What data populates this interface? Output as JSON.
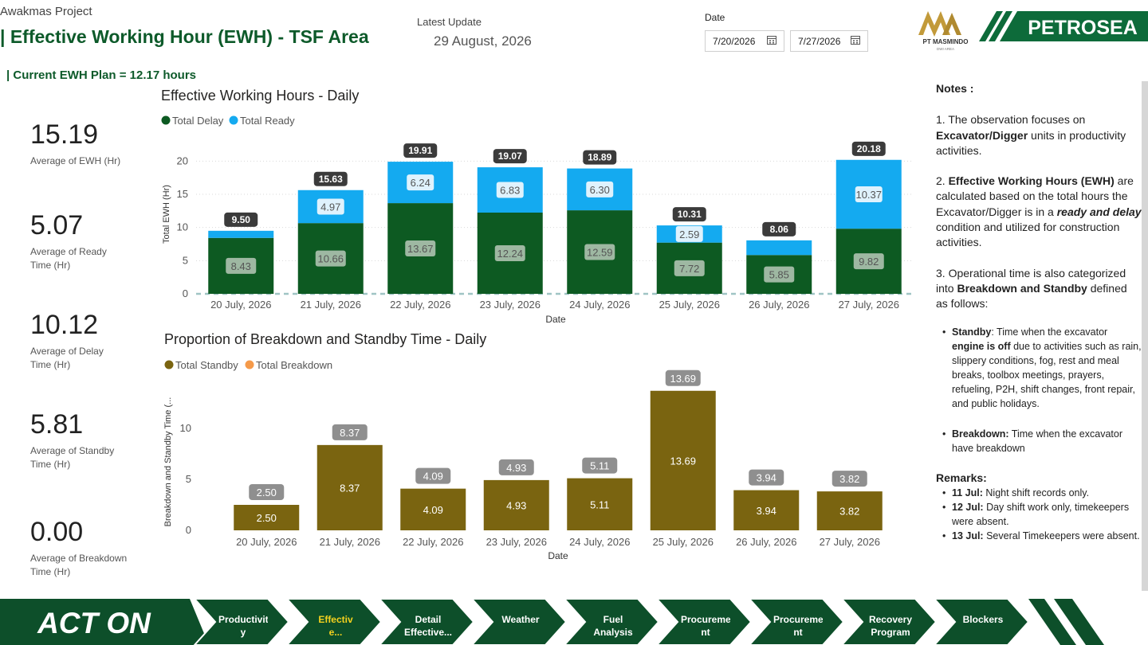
{
  "header": {
    "project": "Awakmas Project",
    "title": "| Effective Working Hour (EWH) - TSF Area",
    "plan": "| Current EWH Plan = 12.17 hours",
    "latest_update_label": "Latest Update",
    "latest_update_value": "29 August, 2026",
    "date_label": "Date",
    "date_start": "7/20/2026",
    "date_end": "7/27/2026"
  },
  "logos": {
    "masmindo_text": "PT MASMINDO",
    "masmindo_sub": "DWI AREA",
    "petrosea_text": "PETROSEA"
  },
  "kpis": [
    {
      "value": "15.19",
      "label": "Average of EWH (Hr)"
    },
    {
      "value": "5.07",
      "label": "Average of Ready Time (Hr)"
    },
    {
      "value": "10.12",
      "label": "Average of Delay Time (Hr)"
    },
    {
      "value": "5.81",
      "label": "Average of Standby Time (Hr)"
    },
    {
      "value": "0.00",
      "label": "Average of Breakdown Time (Hr)"
    }
  ],
  "colors": {
    "delay": "#0d5a22",
    "ready": "#14aaf0",
    "standby": "#7a6410",
    "breakdown": "#f59a4a",
    "brand_green": "#0d5a2a"
  },
  "chart_data": [
    {
      "type": "bar",
      "stacked": true,
      "title": "Effective Working Hours - Daily",
      "xlabel": "Date",
      "ylabel": "Total EWH (Hr)",
      "ylim": [
        0,
        21
      ],
      "yticks": [
        0,
        5,
        10,
        15,
        20
      ],
      "grid": true,
      "legend": "top-left",
      "categories": [
        "20 July, 2026",
        "21 July, 2026",
        "22 July, 2026",
        "23 July, 2026",
        "24 July, 2026",
        "25 July, 2026",
        "26 July, 2026",
        "27 July, 2026"
      ],
      "series": [
        {
          "name": "Total Delay",
          "values": [
            8.43,
            10.66,
            13.67,
            12.24,
            12.59,
            7.72,
            5.85,
            9.82
          ]
        },
        {
          "name": "Total Ready",
          "values": [
            1.07,
            4.97,
            6.24,
            6.83,
            6.3,
            2.59,
            2.21,
            10.37
          ]
        }
      ],
      "totals": [
        9.5,
        15.63,
        19.91,
        19.07,
        18.89,
        10.31,
        8.06,
        20.18
      ],
      "ready_labels_shown": [
        false,
        true,
        true,
        true,
        true,
        true,
        false,
        true
      ]
    },
    {
      "type": "bar",
      "title": "Proportion of Breakdown and Standby Time - Daily",
      "xlabel": "Date",
      "ylabel": "Breakdown and Standby Time (...",
      "ylim": [
        0,
        15
      ],
      "yticks": [
        0,
        5,
        10
      ],
      "grid": false,
      "legend": "top-left",
      "categories": [
        "20 July, 2026",
        "21 July, 2026",
        "22 July, 2026",
        "23 July, 2026",
        "24 July, 2026",
        "25 July, 2026",
        "26 July, 2026",
        "27 July, 2026"
      ],
      "series": [
        {
          "name": "Total Standby",
          "values": [
            2.5,
            8.37,
            4.09,
            4.93,
            5.11,
            13.69,
            3.94,
            3.82
          ]
        },
        {
          "name": "Total Breakdown",
          "values": [
            0,
            0,
            0,
            0,
            0,
            0,
            0,
            0
          ]
        }
      ],
      "totals": [
        2.5,
        8.37,
        4.09,
        4.93,
        5.11,
        13.69,
        3.94,
        3.82
      ]
    }
  ],
  "notes": {
    "heading": "Notes :",
    "p1_a": "1. The observation focuses on ",
    "p1_b": "Excavator/Digger",
    "p1_c": " units in productivity activities.",
    "p2_a": "2. ",
    "p2_b": "Effective Working Hours (EWH)",
    "p2_c": " are calculated based on the total hours the Excavator/Digger is in a ",
    "p2_d": "ready and delay",
    "p2_e": " condition and utilized for construction activities.",
    "p3_a": "3. Operational time is also categorized into ",
    "p3_b": "Breakdown and Standby",
    "p3_c": " defined as follows:",
    "standby_a": "Standby",
    "standby_b": ": Time when the excavator ",
    "standby_c": "engine is off",
    "standby_d": " due to activities such as rain, slippery conditions, fog, rest and meal breaks, toolbox meetings, prayers, refueling, P2H, shift changes, front repair, and public holidays.",
    "breakdown_a": "Breakdown:",
    "breakdown_b": " Time when the excavator have breakdown",
    "remarks_heading": "Remarks:",
    "remarks": [
      {
        "day": "11 Jul:",
        "text": " Night shift records only."
      },
      {
        "day": "12 Jul:",
        "text": " Day shift work only, timekeepers were absent."
      },
      {
        "day": "13 Jul:",
        "text": " Several Timekeepers were absent."
      }
    ]
  },
  "nav": {
    "logo_text": "ACT ON",
    "items": [
      {
        "label": "Productivit y",
        "active": false
      },
      {
        "label": "Effectiv e...",
        "active": true
      },
      {
        "label": "Detail Effective...",
        "active": false
      },
      {
        "label": "Weather",
        "active": false
      },
      {
        "label": "Fuel Analysis",
        "active": false
      },
      {
        "label": "Procureme nt Tracke...",
        "active": false
      },
      {
        "label": "Procureme nt Tracke...",
        "active": false
      },
      {
        "label": "Recovery Program",
        "active": false
      },
      {
        "label": "Blockers",
        "active": false
      }
    ]
  }
}
